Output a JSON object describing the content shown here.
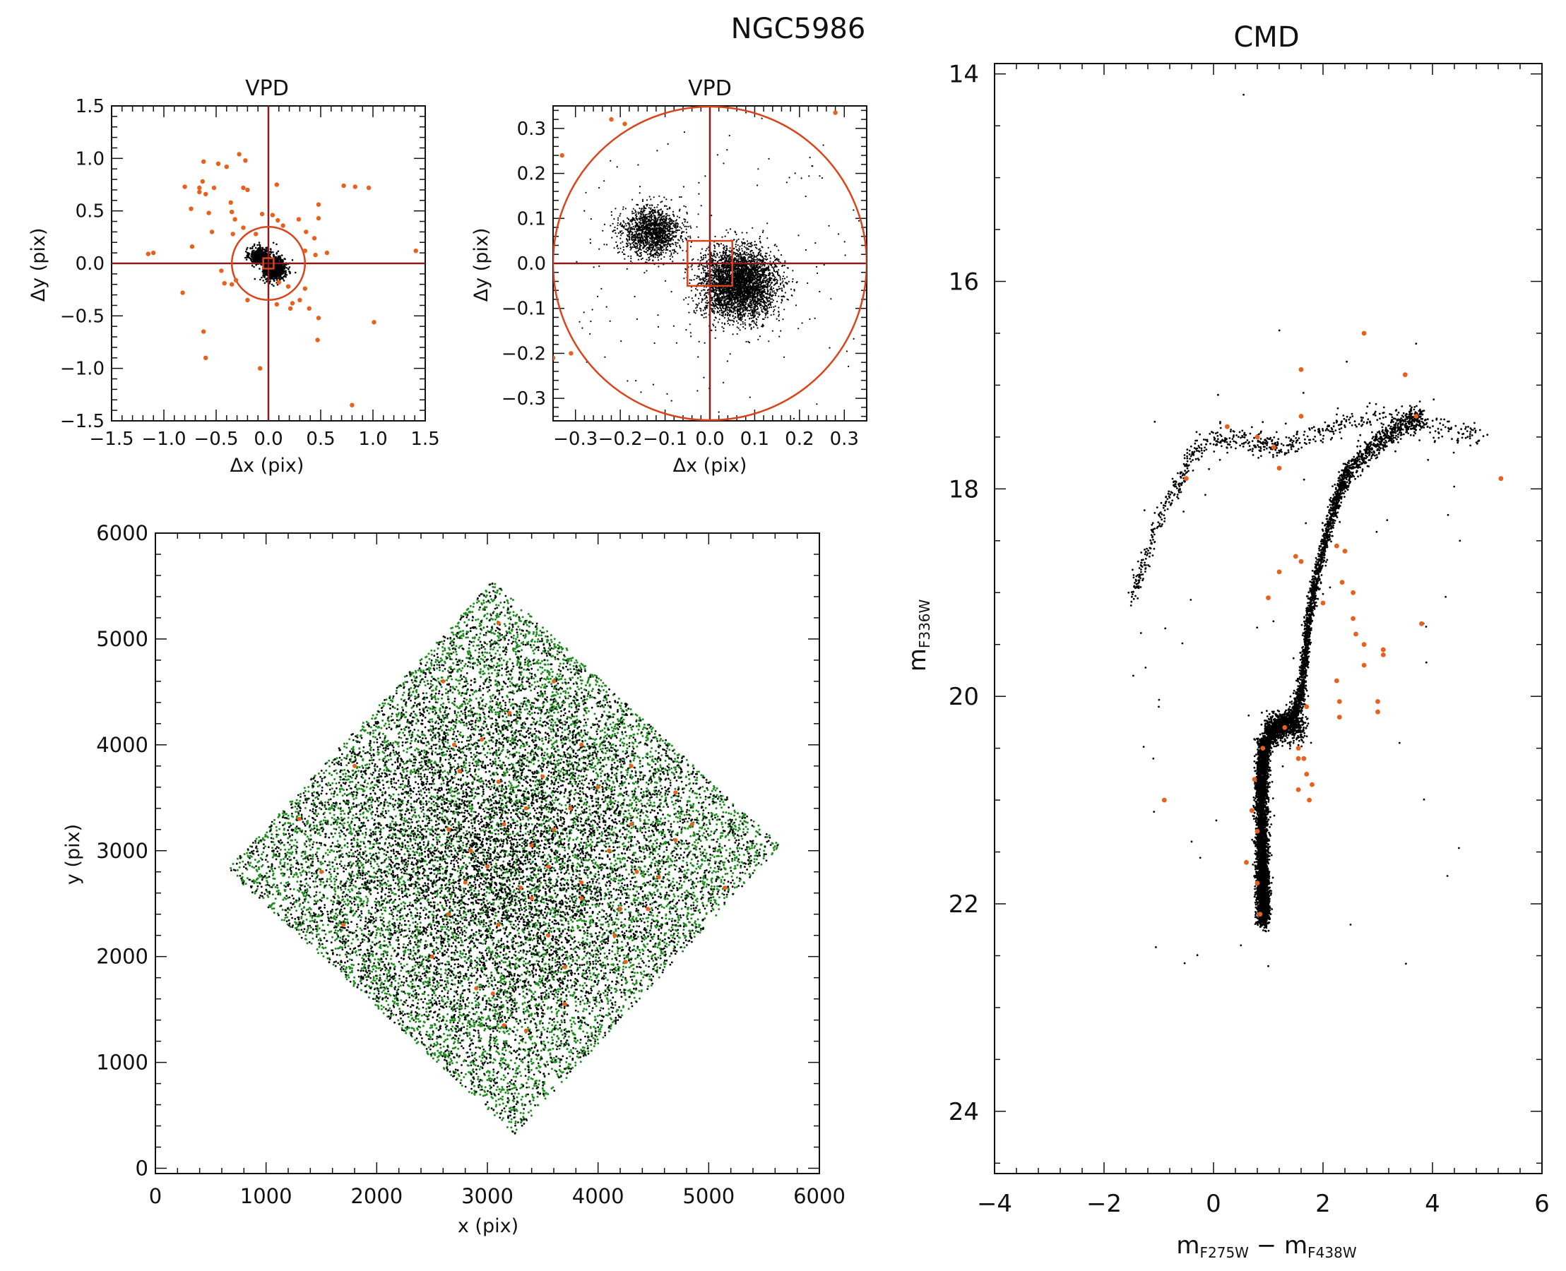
{
  "figure_title": "NGC5986",
  "colors": {
    "cluster_stars": "#000000",
    "field_stars": "#E8601C",
    "all_stars": "#1E8C1E",
    "cut_lines": "#8B1A1A",
    "selection": "#D9441A"
  },
  "chart_data": [
    {
      "id": "vpd_wide",
      "type": "scatter",
      "title": "VPD",
      "xlabel": "Δx (pix)",
      "ylabel": "Δy (pix)",
      "xlim": [
        -1.5,
        1.5
      ],
      "ylim": [
        -1.5,
        1.5
      ],
      "xticks": [
        -1.5,
        -1.0,
        -0.5,
        0.0,
        0.5,
        1.0,
        1.5
      ],
      "xtick_labels": [
        "−1.5",
        "−1.0",
        "−0.5",
        "0.0",
        "0.5",
        "1.0",
        "1.5"
      ],
      "yticks": [
        -1.5,
        -1.0,
        -0.5,
        0.0,
        0.5,
        1.0,
        1.5
      ],
      "ytick_labels": [
        "−1.5",
        "−1.0",
        "−0.5",
        "0.0",
        "0.5",
        "1.0",
        "1.5"
      ],
      "cluster_clumps": [
        {
          "cx": -0.08,
          "cy": 0.07,
          "sx": 0.05,
          "sy": 0.04,
          "n": 500
        },
        {
          "cx": 0.06,
          "cy": -0.05,
          "sx": 0.05,
          "sy": 0.05,
          "n": 900
        }
      ],
      "circle_radius": 0.35,
      "box_halfwidth": 0.05,
      "cross_at": [
        0.0,
        0.0
      ],
      "field_points": [
        [
          -0.62,
          0.97
        ],
        [
          -0.48,
          0.95
        ],
        [
          -0.28,
          1.04
        ],
        [
          -0.22,
          0.98
        ],
        [
          -0.4,
          0.92
        ],
        [
          -0.63,
          0.78
        ],
        [
          -0.66,
          0.72
        ],
        [
          -0.8,
          0.73
        ],
        [
          -0.52,
          0.72
        ],
        [
          -0.24,
          0.72
        ],
        [
          -0.2,
          0.7
        ],
        [
          0.08,
          0.75
        ],
        [
          0.72,
          0.74
        ],
        [
          0.83,
          0.73
        ],
        [
          0.96,
          0.72
        ],
        [
          -0.66,
          0.68
        ],
        [
          -0.6,
          0.66
        ],
        [
          -0.36,
          0.58
        ],
        [
          -0.06,
          0.47
        ],
        [
          0.04,
          0.46
        ],
        [
          0.09,
          0.41
        ],
        [
          0.48,
          0.56
        ],
        [
          0.29,
          0.42
        ],
        [
          0.48,
          0.43
        ],
        [
          -0.57,
          0.48
        ],
        [
          -0.74,
          0.52
        ],
        [
          -0.35,
          0.49
        ],
        [
          -0.32,
          0.42
        ],
        [
          -0.24,
          0.34
        ],
        [
          -0.34,
          0.28
        ],
        [
          -0.54,
          0.3
        ],
        [
          0.14,
          0.36
        ],
        [
          0.36,
          0.3
        ],
        [
          0.44,
          0.24
        ],
        [
          -0.12,
          0.28
        ],
        [
          0.56,
          0.1
        ],
        [
          0.35,
          0.12
        ],
        [
          0.45,
          0.08
        ],
        [
          -0.73,
          0.16
        ],
        [
          -1.1,
          0.1
        ],
        [
          -1.15,
          0.09
        ],
        [
          1.41,
          0.12
        ],
        [
          -0.45,
          -0.07
        ],
        [
          -0.42,
          -0.19
        ],
        [
          -0.31,
          -0.16
        ],
        [
          -0.35,
          -0.2
        ],
        [
          0.1,
          -0.18
        ],
        [
          0.19,
          -0.22
        ],
        [
          0.35,
          -0.24
        ],
        [
          -0.82,
          -0.28
        ],
        [
          -0.2,
          -0.35
        ],
        [
          0.3,
          -0.35
        ],
        [
          0.39,
          -0.43
        ],
        [
          0.23,
          -0.38
        ],
        [
          0.21,
          -0.43
        ],
        [
          0.08,
          -0.39
        ],
        [
          0.48,
          -0.52
        ],
        [
          -0.62,
          -0.65
        ],
        [
          1.01,
          -0.56
        ],
        [
          0.47,
          -0.73
        ],
        [
          -0.6,
          -0.9
        ],
        [
          -0.08,
          -1.0
        ],
        [
          0.8,
          -1.35
        ]
      ]
    },
    {
      "id": "vpd_zoom",
      "type": "scatter",
      "title": "VPD",
      "xlabel": "Δx (pix)",
      "ylabel": "Δy (pix)",
      "xlim": [
        -0.35,
        0.35
      ],
      "ylim": [
        -0.35,
        0.35
      ],
      "xticks": [
        -0.3,
        -0.2,
        -0.1,
        0.0,
        0.1,
        0.2,
        0.3
      ],
      "xtick_labels": [
        "−0.3",
        "−0.2",
        "−0.1",
        "0.0",
        "0.1",
        "0.2",
        "0.3"
      ],
      "yticks": [
        -0.3,
        -0.2,
        -0.1,
        0.0,
        0.1,
        0.2,
        0.3
      ],
      "ytick_labels": [
        "−0.3",
        "−0.2",
        "−0.1",
        "0.0",
        "0.1",
        "0.2",
        "0.3"
      ],
      "cluster_clumps": [
        {
          "cx": -0.13,
          "cy": 0.07,
          "sx": 0.033,
          "sy": 0.028,
          "n": 1500
        },
        {
          "cx": 0.065,
          "cy": -0.045,
          "sx": 0.042,
          "sy": 0.038,
          "n": 3800
        }
      ],
      "circle_radius": 0.35,
      "box_halfwidth": 0.05,
      "cross_at": [
        0.0,
        0.0
      ],
      "field_points": [
        [
          -0.22,
          0.32
        ],
        [
          -0.19,
          0.31
        ],
        [
          -0.33,
          0.24
        ],
        [
          -0.35,
          -0.21
        ],
        [
          -0.31,
          -0.2
        ],
        [
          0.28,
          0.335
        ]
      ]
    },
    {
      "id": "xy_map",
      "type": "scatter",
      "xlabel": "x (pix)",
      "ylabel": "y (pix)",
      "xlim": [
        0,
        6000
      ],
      "ylim": [
        -50,
        6000
      ],
      "xticks": [
        0,
        1000,
        2000,
        3000,
        4000,
        5000,
        6000
      ],
      "xtick_labels": [
        "0",
        "1000",
        "2000",
        "3000",
        "4000",
        "5000",
        "6000"
      ],
      "yticks": [
        0,
        1000,
        2000,
        3000,
        4000,
        5000,
        6000
      ],
      "ytick_labels": [
        "0",
        "1000",
        "2000",
        "3000",
        "4000",
        "5000",
        "6000"
      ],
      "footprint_corners": [
        [
          3050,
          5550
        ],
        [
          5650,
          3050
        ],
        [
          3200,
          580
        ],
        [
          650,
          2820
        ]
      ],
      "n_all_stars": 9000,
      "n_cluster_stars": 8000,
      "core_center": [
        3100,
        2900
      ],
      "field_points": [
        [
          3100,
          5150
        ],
        [
          2600,
          4600
        ],
        [
          3600,
          4600
        ],
        [
          3200,
          4300
        ],
        [
          2700,
          4000
        ],
        [
          2950,
          4050
        ],
        [
          3850,
          4000
        ],
        [
          4300,
          3800
        ],
        [
          2750,
          3750
        ],
        [
          3100,
          3650
        ],
        [
          3500,
          3700
        ],
        [
          4000,
          3600
        ],
        [
          4700,
          3550
        ],
        [
          1800,
          3800
        ],
        [
          3350,
          3400
        ],
        [
          3750,
          3400
        ],
        [
          2650,
          3200
        ],
        [
          3150,
          3250
        ],
        [
          3600,
          3200
        ],
        [
          4300,
          3250
        ],
        [
          4850,
          3250
        ],
        [
          1300,
          3300
        ],
        [
          2850,
          3000
        ],
        [
          3400,
          3050
        ],
        [
          4100,
          3000
        ],
        [
          4700,
          3100
        ],
        [
          3000,
          2850
        ],
        [
          3550,
          2850
        ],
        [
          4350,
          2800
        ],
        [
          4550,
          2750
        ],
        [
          5150,
          2650
        ],
        [
          2800,
          2700
        ],
        [
          3300,
          2650
        ],
        [
          3850,
          2700
        ],
        [
          1500,
          2800
        ],
        [
          2650,
          2400
        ],
        [
          3100,
          2300
        ],
        [
          3400,
          2550
        ],
        [
          3850,
          2550
        ],
        [
          4200,
          2450
        ],
        [
          4450,
          2450
        ],
        [
          1700,
          2300
        ],
        [
          3550,
          2200
        ],
        [
          4150,
          2200
        ],
        [
          2500,
          2000
        ],
        [
          3700,
          1900
        ],
        [
          4250,
          1950
        ],
        [
          3050,
          1650
        ],
        [
          3700,
          1550
        ],
        [
          3150,
          1350
        ],
        [
          3350,
          1300
        ],
        [
          2900,
          1700
        ]
      ]
    },
    {
      "id": "cmd",
      "type": "scatter",
      "title": "CMD",
      "xlabel": "mF275W − mF438W",
      "ylabel": "mF336W",
      "xlim": [
        -4,
        6
      ],
      "ylim": [
        24.6,
        13.9
      ],
      "y_inverted": true,
      "xticks": [
        -4,
        -2,
        0,
        2,
        4,
        6
      ],
      "xtick_labels": [
        "−4",
        "−2",
        "0",
        "2",
        "4",
        "6"
      ],
      "yticks": [
        14,
        16,
        18,
        20,
        22,
        24
      ],
      "ytick_labels": [
        "14",
        "16",
        "18",
        "20",
        "22",
        "24"
      ],
      "sequence_ridge": [
        [
          0.92,
          22.15
        ],
        [
          0.88,
          21.6
        ],
        [
          0.86,
          21.0
        ],
        [
          0.9,
          20.6
        ],
        [
          1.0,
          20.4
        ],
        [
          1.2,
          20.3
        ],
        [
          1.45,
          20.2
        ],
        [
          1.6,
          20.0
        ],
        [
          1.68,
          19.6
        ],
        [
          1.75,
          19.2
        ],
        [
          1.9,
          18.8
        ],
        [
          2.1,
          18.4
        ],
        [
          2.3,
          18.0
        ],
        [
          2.5,
          17.8
        ],
        [
          2.9,
          17.6
        ],
        [
          3.4,
          17.4
        ],
        [
          3.8,
          17.3
        ]
      ],
      "horizontal_branch": [
        [
          -1.5,
          19.1
        ],
        [
          -1.2,
          18.6
        ],
        [
          -0.9,
          18.2
        ],
        [
          -0.6,
          17.9
        ],
        [
          -0.3,
          17.6
        ],
        [
          0.2,
          17.5
        ],
        [
          0.8,
          17.55
        ],
        [
          1.2,
          17.6
        ],
        [
          1.8,
          17.5
        ],
        [
          2.5,
          17.35
        ],
        [
          3.2,
          17.3
        ],
        [
          4.0,
          17.4
        ],
        [
          4.9,
          17.5
        ]
      ],
      "field_points": [
        [
          0.25,
          17.4
        ],
        [
          0.8,
          17.5
        ],
        [
          1.1,
          17.6
        ],
        [
          1.2,
          17.8
        ],
        [
          1.6,
          16.85
        ],
        [
          1.6,
          17.3
        ],
        [
          1.5,
          18.65
        ],
        [
          1.6,
          18.7
        ],
        [
          1.2,
          18.8
        ],
        [
          2.25,
          18.55
        ],
        [
          2.35,
          18.9
        ],
        [
          2.0,
          19.1
        ],
        [
          2.4,
          18.6
        ],
        [
          2.75,
          16.5
        ],
        [
          3.5,
          16.9
        ],
        [
          3.7,
          17.3
        ],
        [
          2.55,
          19.0
        ],
        [
          2.55,
          19.25
        ],
        [
          2.6,
          19.4
        ],
        [
          2.75,
          19.5
        ],
        [
          3.1,
          19.55
        ],
        [
          3.1,
          19.6
        ],
        [
          2.75,
          19.7
        ],
        [
          3.8,
          19.3
        ],
        [
          2.25,
          19.85
        ],
        [
          2.3,
          20.05
        ],
        [
          2.3,
          20.2
        ],
        [
          3.0,
          20.05
        ],
        [
          3.0,
          20.15
        ],
        [
          1.7,
          20.1
        ],
        [
          1.3,
          20.3
        ],
        [
          1.55,
          20.5
        ],
        [
          1.55,
          20.6
        ],
        [
          1.65,
          20.6
        ],
        [
          1.7,
          20.75
        ],
        [
          1.55,
          20.9
        ],
        [
          1.8,
          20.85
        ],
        [
          1.75,
          21.0
        ],
        [
          0.9,
          20.5
        ],
        [
          0.75,
          20.8
        ],
        [
          0.7,
          21.1
        ],
        [
          0.8,
          21.3
        ],
        [
          0.6,
          21.6
        ],
        [
          0.8,
          21.8
        ],
        [
          0.85,
          22.1
        ],
        [
          5.25,
          17.9
        ],
        [
          -0.5,
          17.9
        ],
        [
          -0.9,
          21.0
        ],
        [
          1.0,
          19.05
        ]
      ]
    }
  ]
}
